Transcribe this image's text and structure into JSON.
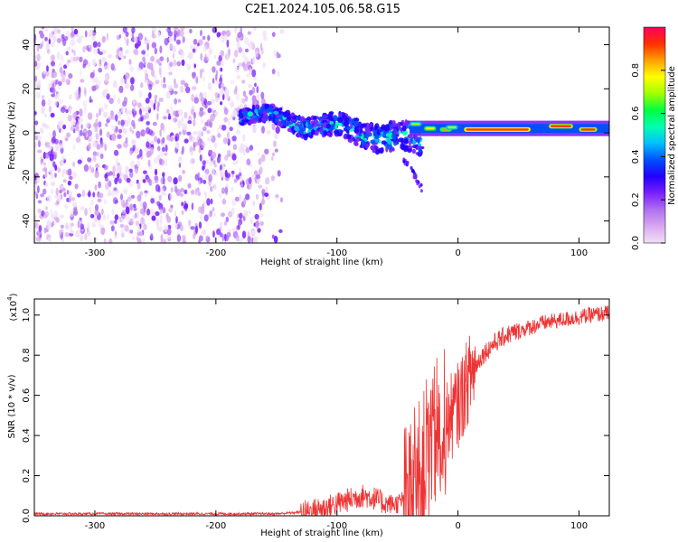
{
  "title": "C2E1.2024.105.06.58.G15",
  "colormap": [
    "#f0e0f8",
    "#d8a8f0",
    "#b070f0",
    "#7a20ff",
    "#2200ff",
    "#0050ff",
    "#00c0ff",
    "#00ffb0",
    "#00ff40",
    "#a0ff00",
    "#ffff00",
    "#ffa000",
    "#ff3000",
    "#ff0060"
  ],
  "line_color": "#ee3333",
  "chart_data": [
    {
      "type": "heatmap",
      "xlabel": "Height of straight line (km)",
      "ylabel": "Frequency (Hz)",
      "xlim": [
        -350,
        125
      ],
      "ylim": [
        -50,
        48
      ],
      "x_ticks": [
        -300,
        -200,
        -100,
        0,
        100
      ],
      "y_ticks": [
        -40,
        -20,
        0,
        20,
        40
      ],
      "colorbar": {
        "label": "Normalized spectral amplitude",
        "range": [
          0,
          1
        ],
        "ticks": [
          "0.0",
          "0.2",
          "0.4",
          "0.6",
          "0.8"
        ]
      },
      "regions": [
        {
          "x": [
            -350,
            -145
          ],
          "freq": [
            -50,
            48
          ],
          "amplitude": "low, scattered noise"
        },
        {
          "x": [
            -180,
            -30
          ],
          "freq": [
            -15,
            12
          ],
          "amplitude": "0.2-0.5 signal band drifting downward"
        },
        {
          "x": [
            -30,
            125
          ],
          "freq": [
            0,
            4
          ],
          "amplitude": "0.7-1.0 carrier line"
        }
      ]
    },
    {
      "type": "line",
      "xlabel": "Height of straight line (km)",
      "ylabel": "SNR (10 * v/v)",
      "yunit": "(x10",
      "yunit_exp": "4",
      "xlim": [
        -350,
        125
      ],
      "ylim": [
        0,
        1.08
      ],
      "x_ticks": [
        -300,
        -200,
        -100,
        0,
        100
      ],
      "y_ticks": [
        "0.0",
        "0.2",
        "0.4",
        "0.6",
        "0.8",
        "1.0"
      ],
      "series": [
        {
          "x": [
            -350,
            -300,
            -250,
            -200,
            -150,
            -125,
            -110,
            -100,
            -90,
            -80,
            -70,
            -60,
            -50,
            -40,
            -35,
            -30,
            -25,
            -20,
            -15,
            -10,
            -5,
            0,
            5,
            10,
            20,
            30,
            40,
            50,
            60,
            70,
            80,
            90,
            100,
            110,
            125
          ],
          "y": [
            0.01,
            0.01,
            0.01,
            0.01,
            0.01,
            0.02,
            0.04,
            0.06,
            0.08,
            0.1,
            0.09,
            0.06,
            0.06,
            0.1,
            0.15,
            0.22,
            0.3,
            0.38,
            0.42,
            0.46,
            0.5,
            0.55,
            0.62,
            0.7,
            0.8,
            0.86,
            0.9,
            0.92,
            0.94,
            0.96,
            0.97,
            0.98,
            0.99,
            1.0,
            1.01
          ]
        }
      ]
    }
  ]
}
